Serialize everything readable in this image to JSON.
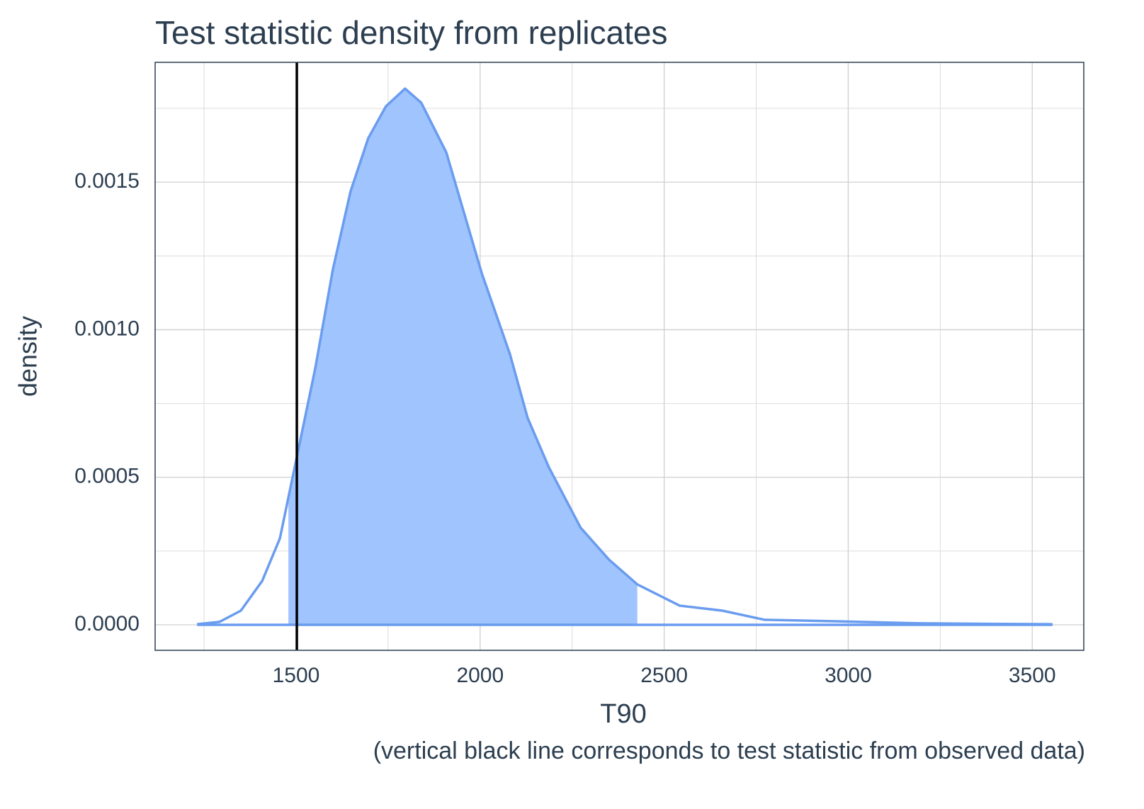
{
  "chart_data": {
    "type": "density",
    "title": "Test statistic density from replicates",
    "xlabel": "T90",
    "ylabel": "density",
    "caption": "(vertical black line corresponds to test statistic from observed data)",
    "x": [
      1231,
      1292,
      1350,
      1408,
      1456,
      1504,
      1552,
      1600,
      1648,
      1696,
      1744,
      1796,
      1840,
      1908,
      2004,
      2081,
      2129,
      2187,
      2273,
      2350,
      2427,
      2542,
      2658,
      2773,
      2965,
      3196,
      3555
    ],
    "values": [
      2e-06,
      1e-05,
      4.8e-05,
      0.000149,
      0.000293,
      0.000581,
      0.000869,
      0.001205,
      0.001469,
      0.001649,
      0.001757,
      0.001817,
      0.001769,
      0.001601,
      0.001193,
      0.000917,
      0.000701,
      0.000533,
      0.000329,
      0.000221,
      0.000137,
      6.5e-05,
      4.8e-05,
      1.7e-05,
      1.2e-05,
      5e-06,
      2e-06
    ],
    "color": "#6a9cef",
    "fill_color": "#a0c4fd",
    "shaded_interval": [
      1479,
      2427
    ],
    "observed_statistic": 1502,
    "observed_color": "#000000",
    "xlim": [
      1117,
      3640
    ],
    "ylim": [
      -8.64e-05,
      0.001906
    ],
    "xticks": [
      1500,
      2000,
      2500,
      3000,
      3500
    ],
    "yticks": [
      {
        "value": 0,
        "label": "0.0000"
      },
      {
        "value": 0.0005,
        "label": "0.0005"
      },
      {
        "value": 0.001,
        "label": "0.0010"
      },
      {
        "value": 0.0015,
        "label": "0.0015"
      }
    ],
    "x_minor_ticks": [
      1250,
      1750,
      2250,
      2750,
      3250
    ],
    "y_minor_ticks": [
      0.00025,
      0.00075,
      0.00125,
      0.00175
    ],
    "grid": true
  }
}
